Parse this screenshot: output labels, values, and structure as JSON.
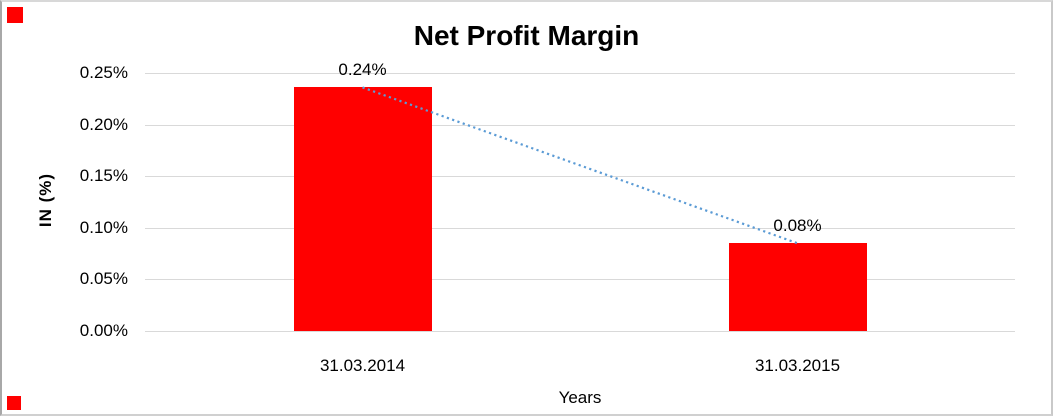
{
  "window": {
    "background_color": "#ffffff",
    "border_color": "#c9c9c9"
  },
  "decorations": {
    "top_left_square_color": "#ff0000",
    "bottom_left_square_color": "#ff0000"
  },
  "chart_data": {
    "type": "bar",
    "title": "Net Profit Margin",
    "xlabel": "Years",
    "ylabel": "IN (%)",
    "categories": [
      "31.03.2014",
      "31.03.2015"
    ],
    "series": [
      {
        "name": "Net Profit Margin",
        "values": [
          0.236,
          0.085
        ]
      }
    ],
    "data_labels": [
      "0.24%",
      "0.08%"
    ],
    "yticks": [
      "0.25%",
      "0.20%",
      "0.15%",
      "0.10%",
      "0.05%",
      "0.00%"
    ],
    "ylim": [
      0,
      0.25
    ],
    "grid": true,
    "legend": "none",
    "bar_color": "#ff0000",
    "gridline_color": "#d9d9d9",
    "text_color": "#000000",
    "trendline": {
      "style": "dotted",
      "color": "#5b9bd5",
      "from_value": 0.236,
      "to_value": 0.085
    }
  }
}
